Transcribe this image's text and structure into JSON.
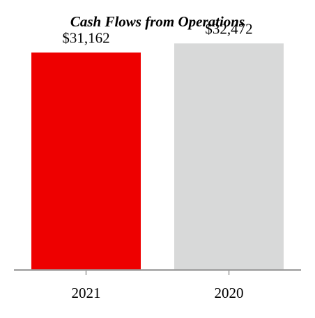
{
  "chart_data": {
    "type": "bar",
    "title": "Cash Flows from Operations",
    "categories": [
      "2021",
      "2020"
    ],
    "values": [
      31162,
      32472
    ],
    "data_labels": [
      "$31,162",
      "$32,472"
    ],
    "bar_colors": [
      "#ee0000",
      "#d8d9d9"
    ],
    "ylim": [
      0,
      35500
    ],
    "xlabel": "",
    "ylabel": "",
    "grid": false,
    "legend": "none"
  },
  "colors": {
    "axis": "#999999",
    "text": "#000000"
  }
}
